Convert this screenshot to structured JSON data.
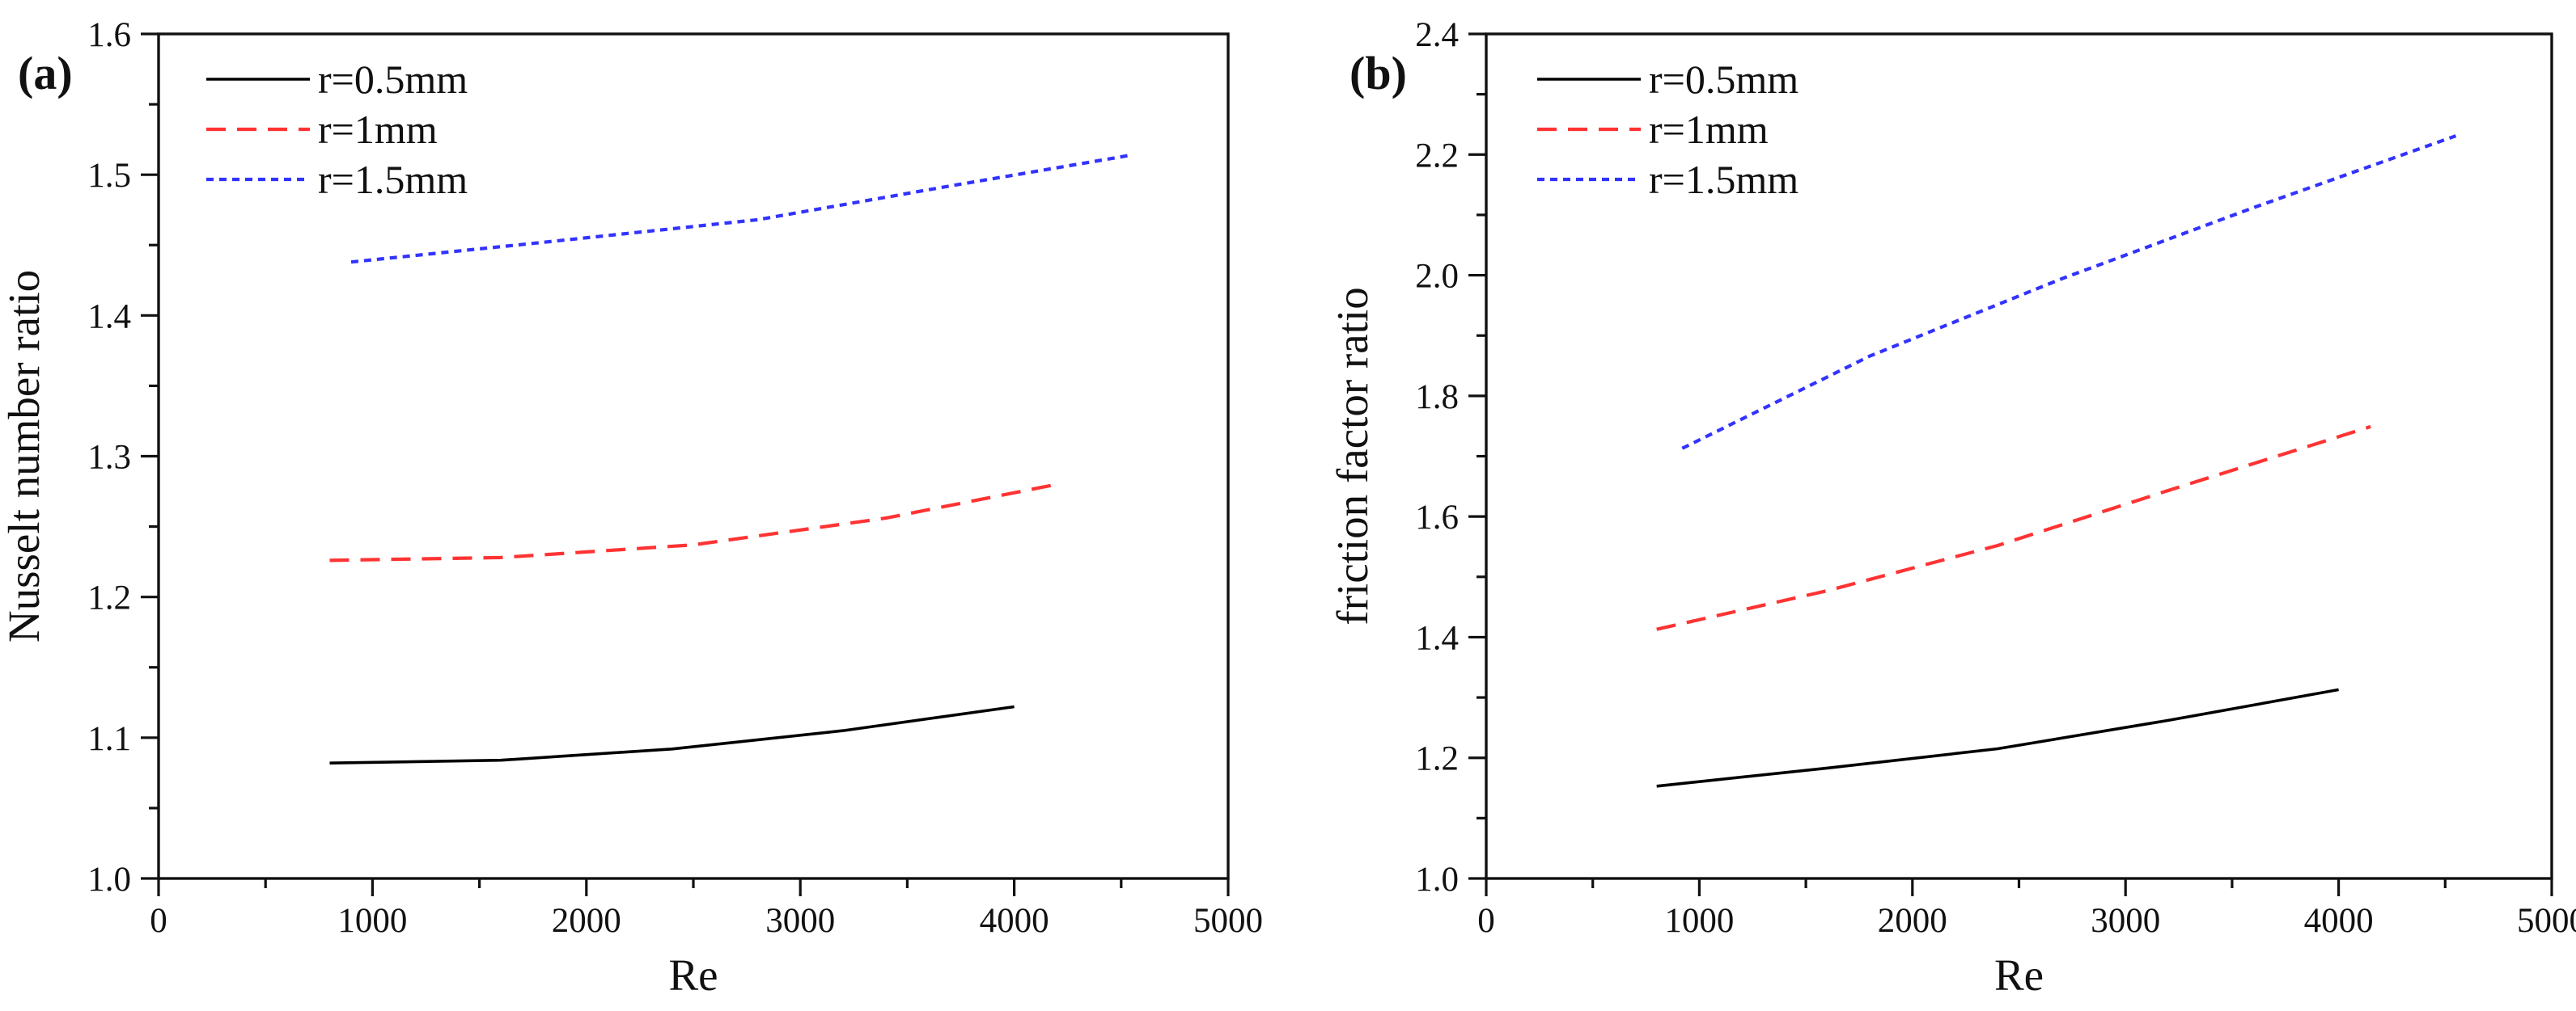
{
  "chart_data": [
    {
      "type": "line",
      "panel_label": "(a)",
      "title": "",
      "xlabel": "Re",
      "ylabel": "Nusselt number ratio",
      "xlim": [
        0,
        5000
      ],
      "ylim": [
        1.0,
        1.6
      ],
      "xticks": [
        0,
        1000,
        2000,
        3000,
        4000,
        5000
      ],
      "xtick_labels": [
        "0",
        "1000",
        "2000",
        "3000",
        "4000",
        "5000"
      ],
      "yticks": [
        1.0,
        1.1,
        1.2,
        1.3,
        1.4,
        1.5,
        1.6
      ],
      "ytick_labels": [
        "1.0",
        "1.1",
        "1.2",
        "1.3",
        "1.4",
        "1.5",
        "1.6"
      ],
      "grid": false,
      "legend_position": "top-left",
      "series": [
        {
          "name": "r=0.5mm",
          "color": "#000000",
          "style": "solid",
          "x": [
            800,
            1600,
            2400,
            3200,
            4000
          ],
          "y": [
            1.082,
            1.084,
            1.092,
            1.105,
            1.122
          ]
        },
        {
          "name": "r=1mm",
          "color": "#ff3333",
          "style": "dashed",
          "x": [
            800,
            1600,
            2500,
            3400,
            4200
          ],
          "y": [
            1.226,
            1.228,
            1.237,
            1.256,
            1.28
          ]
        },
        {
          "name": "r=1.5mm",
          "color": "#3333ff",
          "style": "dotted",
          "x": [
            900,
            1800,
            2800,
            3700,
            4550
          ],
          "y": [
            1.438,
            1.452,
            1.468,
            1.492,
            1.514
          ]
        }
      ]
    },
    {
      "type": "line",
      "panel_label": "(b)",
      "title": "",
      "xlabel": "Re",
      "ylabel": "friction factor ratio",
      "xlim": [
        0,
        5000
      ],
      "ylim": [
        1.0,
        2.4
      ],
      "xticks": [
        0,
        1000,
        2000,
        3000,
        4000,
        5000
      ],
      "xtick_labels": [
        "0",
        "1000",
        "2000",
        "3000",
        "4000",
        "5000"
      ],
      "yticks": [
        1.0,
        1.2,
        1.4,
        1.6,
        1.8,
        2.0,
        2.2,
        2.4
      ],
      "ytick_labels": [
        "1.0",
        "1.2",
        "1.4",
        "1.6",
        "1.8",
        "2.0",
        "2.2",
        "2.4"
      ],
      "grid": false,
      "legend_position": "top-left",
      "series": [
        {
          "name": "r=0.5mm",
          "color": "#000000",
          "style": "solid",
          "x": [
            800,
            1600,
            2400,
            3200,
            4000
          ],
          "y": [
            1.153,
            1.183,
            1.215,
            1.262,
            1.313
          ]
        },
        {
          "name": "r=1mm",
          "color": "#ff3333",
          "style": "dashed",
          "x": [
            800,
            1600,
            2400,
            3200,
            4150
          ],
          "y": [
            1.413,
            1.477,
            1.552,
            1.643,
            1.749
          ]
        },
        {
          "name": "r=1.5mm",
          "color": "#3333ff",
          "style": "dotted",
          "x": [
            920,
            1800,
            2700,
            3600,
            4550
          ],
          "y": [
            1.713,
            1.866,
            1.994,
            2.112,
            2.231
          ]
        }
      ]
    }
  ]
}
